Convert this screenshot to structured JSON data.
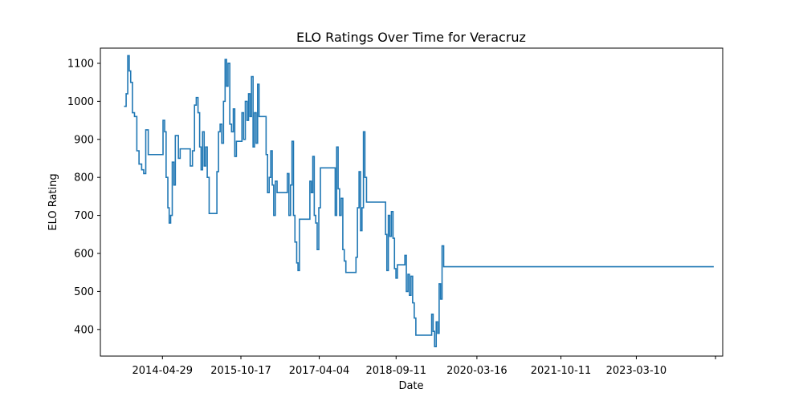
{
  "chart_data": {
    "type": "line",
    "title": "ELO Ratings Over Time for Veracruz",
    "xlabel": "Date",
    "ylabel": "ELO Rating",
    "x_tick_labels": [
      "2014-04-29",
      "2015-10-17",
      "2017-04-04",
      "2018-09-11",
      "2020-03-16",
      "2021-10-11",
      "2023-03-10",
      ""
    ],
    "x_tick_dates": [
      "2014-04-29",
      "2015-10-17",
      "2017-04-04",
      "2018-09-11",
      "2020-03-16",
      "2021-10-11",
      "2023-03-10",
      "2024-09-01"
    ],
    "y_ticks": [
      400,
      500,
      600,
      700,
      800,
      900,
      1000,
      1100
    ],
    "ylim": [
      330,
      1140
    ],
    "xlim": [
      "2013-03-01",
      "2024-10-20"
    ],
    "grid": false,
    "step": true,
    "series": [
      {
        "color": "#1f77b4",
        "points": [
          [
            "2013-08-10",
            987
          ],
          [
            "2013-08-24",
            1020
          ],
          [
            "2013-09-04",
            1120
          ],
          [
            "2013-09-14",
            1080
          ],
          [
            "2013-09-24",
            1050
          ],
          [
            "2013-10-06",
            970
          ],
          [
            "2013-10-20",
            960
          ],
          [
            "2013-11-05",
            870
          ],
          [
            "2013-11-20",
            835
          ],
          [
            "2013-12-08",
            820
          ],
          [
            "2013-12-22",
            810
          ],
          [
            "2014-01-05",
            925
          ],
          [
            "2014-01-22",
            860
          ],
          [
            "2014-02-10",
            860
          ],
          [
            "2014-03-20",
            860
          ],
          [
            "2014-04-20",
            860
          ],
          [
            "2014-05-03",
            950
          ],
          [
            "2014-05-14",
            920
          ],
          [
            "2014-05-24",
            800
          ],
          [
            "2014-06-05",
            720
          ],
          [
            "2014-06-14",
            680
          ],
          [
            "2014-06-24",
            700
          ],
          [
            "2014-07-05",
            840
          ],
          [
            "2014-07-16",
            780
          ],
          [
            "2014-07-26",
            910
          ],
          [
            "2014-08-05",
            910
          ],
          [
            "2014-08-16",
            850
          ],
          [
            "2014-08-28",
            875
          ],
          [
            "2014-10-20",
            875
          ],
          [
            "2014-11-05",
            830
          ],
          [
            "2014-11-20",
            870
          ],
          [
            "2014-12-04",
            990
          ],
          [
            "2014-12-16",
            1010
          ],
          [
            "2014-12-28",
            970
          ],
          [
            "2015-01-08",
            880
          ],
          [
            "2015-01-18",
            820
          ],
          [
            "2015-01-28",
            920
          ],
          [
            "2015-02-08",
            830
          ],
          [
            "2015-02-18",
            880
          ],
          [
            "2015-03-01",
            800
          ],
          [
            "2015-03-14",
            705
          ],
          [
            "2015-04-20",
            705
          ],
          [
            "2015-05-06",
            815
          ],
          [
            "2015-05-17",
            920
          ],
          [
            "2015-05-28",
            940
          ],
          [
            "2015-06-08",
            890
          ],
          [
            "2015-06-20",
            1000
          ],
          [
            "2015-07-01",
            1110
          ],
          [
            "2015-07-11",
            1040
          ],
          [
            "2015-07-21",
            1100
          ],
          [
            "2015-08-02",
            940
          ],
          [
            "2015-08-14",
            920
          ],
          [
            "2015-08-26",
            980
          ],
          [
            "2015-09-05",
            855
          ],
          [
            "2015-09-16",
            895
          ],
          [
            "2015-09-30",
            895
          ],
          [
            "2015-10-12",
            895
          ],
          [
            "2015-10-24",
            970
          ],
          [
            "2015-11-04",
            900
          ],
          [
            "2015-11-16",
            1000
          ],
          [
            "2015-11-28",
            950
          ],
          [
            "2015-12-08",
            1020
          ],
          [
            "2015-12-18",
            960
          ],
          [
            "2015-12-28",
            1065
          ],
          [
            "2016-01-08",
            880
          ],
          [
            "2016-01-18",
            970
          ],
          [
            "2016-01-29",
            890
          ],
          [
            "2016-02-08",
            1045
          ],
          [
            "2016-02-18",
            960
          ],
          [
            "2016-03-20",
            960
          ],
          [
            "2016-04-06",
            860
          ],
          [
            "2016-04-16",
            760
          ],
          [
            "2016-04-27",
            800
          ],
          [
            "2016-05-08",
            870
          ],
          [
            "2016-05-18",
            780
          ],
          [
            "2016-05-28",
            700
          ],
          [
            "2016-06-08",
            790
          ],
          [
            "2016-06-20",
            760
          ],
          [
            "2016-08-18",
            760
          ],
          [
            "2016-08-29",
            810
          ],
          [
            "2016-09-09",
            700
          ],
          [
            "2016-09-20",
            780
          ],
          [
            "2016-09-30",
            895
          ],
          [
            "2016-10-10",
            700
          ],
          [
            "2016-10-20",
            630
          ],
          [
            "2016-11-01",
            575
          ],
          [
            "2016-11-10",
            555
          ],
          [
            "2016-11-20",
            690
          ],
          [
            "2017-01-20",
            690
          ],
          [
            "2017-01-30",
            790
          ],
          [
            "2017-02-09",
            760
          ],
          [
            "2017-02-19",
            855
          ],
          [
            "2017-03-01",
            700
          ],
          [
            "2017-03-11",
            680
          ],
          [
            "2017-03-21",
            610
          ],
          [
            "2017-04-01",
            720
          ],
          [
            "2017-04-12",
            825
          ],
          [
            "2017-07-12",
            825
          ],
          [
            "2017-07-22",
            700
          ],
          [
            "2017-08-01",
            880
          ],
          [
            "2017-08-11",
            770
          ],
          [
            "2017-08-21",
            700
          ],
          [
            "2017-09-01",
            745
          ],
          [
            "2017-09-12",
            610
          ],
          [
            "2017-09-22",
            580
          ],
          [
            "2017-10-03",
            550
          ],
          [
            "2017-12-01",
            550
          ],
          [
            "2017-12-11",
            590
          ],
          [
            "2017-12-21",
            720
          ],
          [
            "2018-01-01",
            815
          ],
          [
            "2018-01-11",
            660
          ],
          [
            "2018-01-21",
            720
          ],
          [
            "2018-01-31",
            920
          ],
          [
            "2018-02-10",
            800
          ],
          [
            "2018-02-21",
            735
          ],
          [
            "2018-06-20",
            735
          ],
          [
            "2018-07-01",
            650
          ],
          [
            "2018-07-10",
            555
          ],
          [
            "2018-07-20",
            700
          ],
          [
            "2018-07-30",
            645
          ],
          [
            "2018-08-10",
            710
          ],
          [
            "2018-08-21",
            640
          ],
          [
            "2018-08-31",
            560
          ],
          [
            "2018-09-10",
            535
          ],
          [
            "2018-09-20",
            570
          ],
          [
            "2018-10-30",
            570
          ],
          [
            "2018-11-10",
            595
          ],
          [
            "2018-11-20",
            500
          ],
          [
            "2018-12-01",
            545
          ],
          [
            "2018-12-11",
            490
          ],
          [
            "2018-12-22",
            540
          ],
          [
            "2019-01-02",
            470
          ],
          [
            "2019-01-13",
            430
          ],
          [
            "2019-01-24",
            385
          ],
          [
            "2019-05-01",
            385
          ],
          [
            "2019-05-12",
            440
          ],
          [
            "2019-05-22",
            395
          ],
          [
            "2019-06-01",
            355
          ],
          [
            "2019-06-12",
            420
          ],
          [
            "2019-06-22",
            390
          ],
          [
            "2019-07-02",
            520
          ],
          [
            "2019-07-12",
            480
          ],
          [
            "2019-07-22",
            620
          ],
          [
            "2019-08-02",
            565
          ],
          [
            "2024-08-20",
            565
          ]
        ]
      }
    ]
  }
}
